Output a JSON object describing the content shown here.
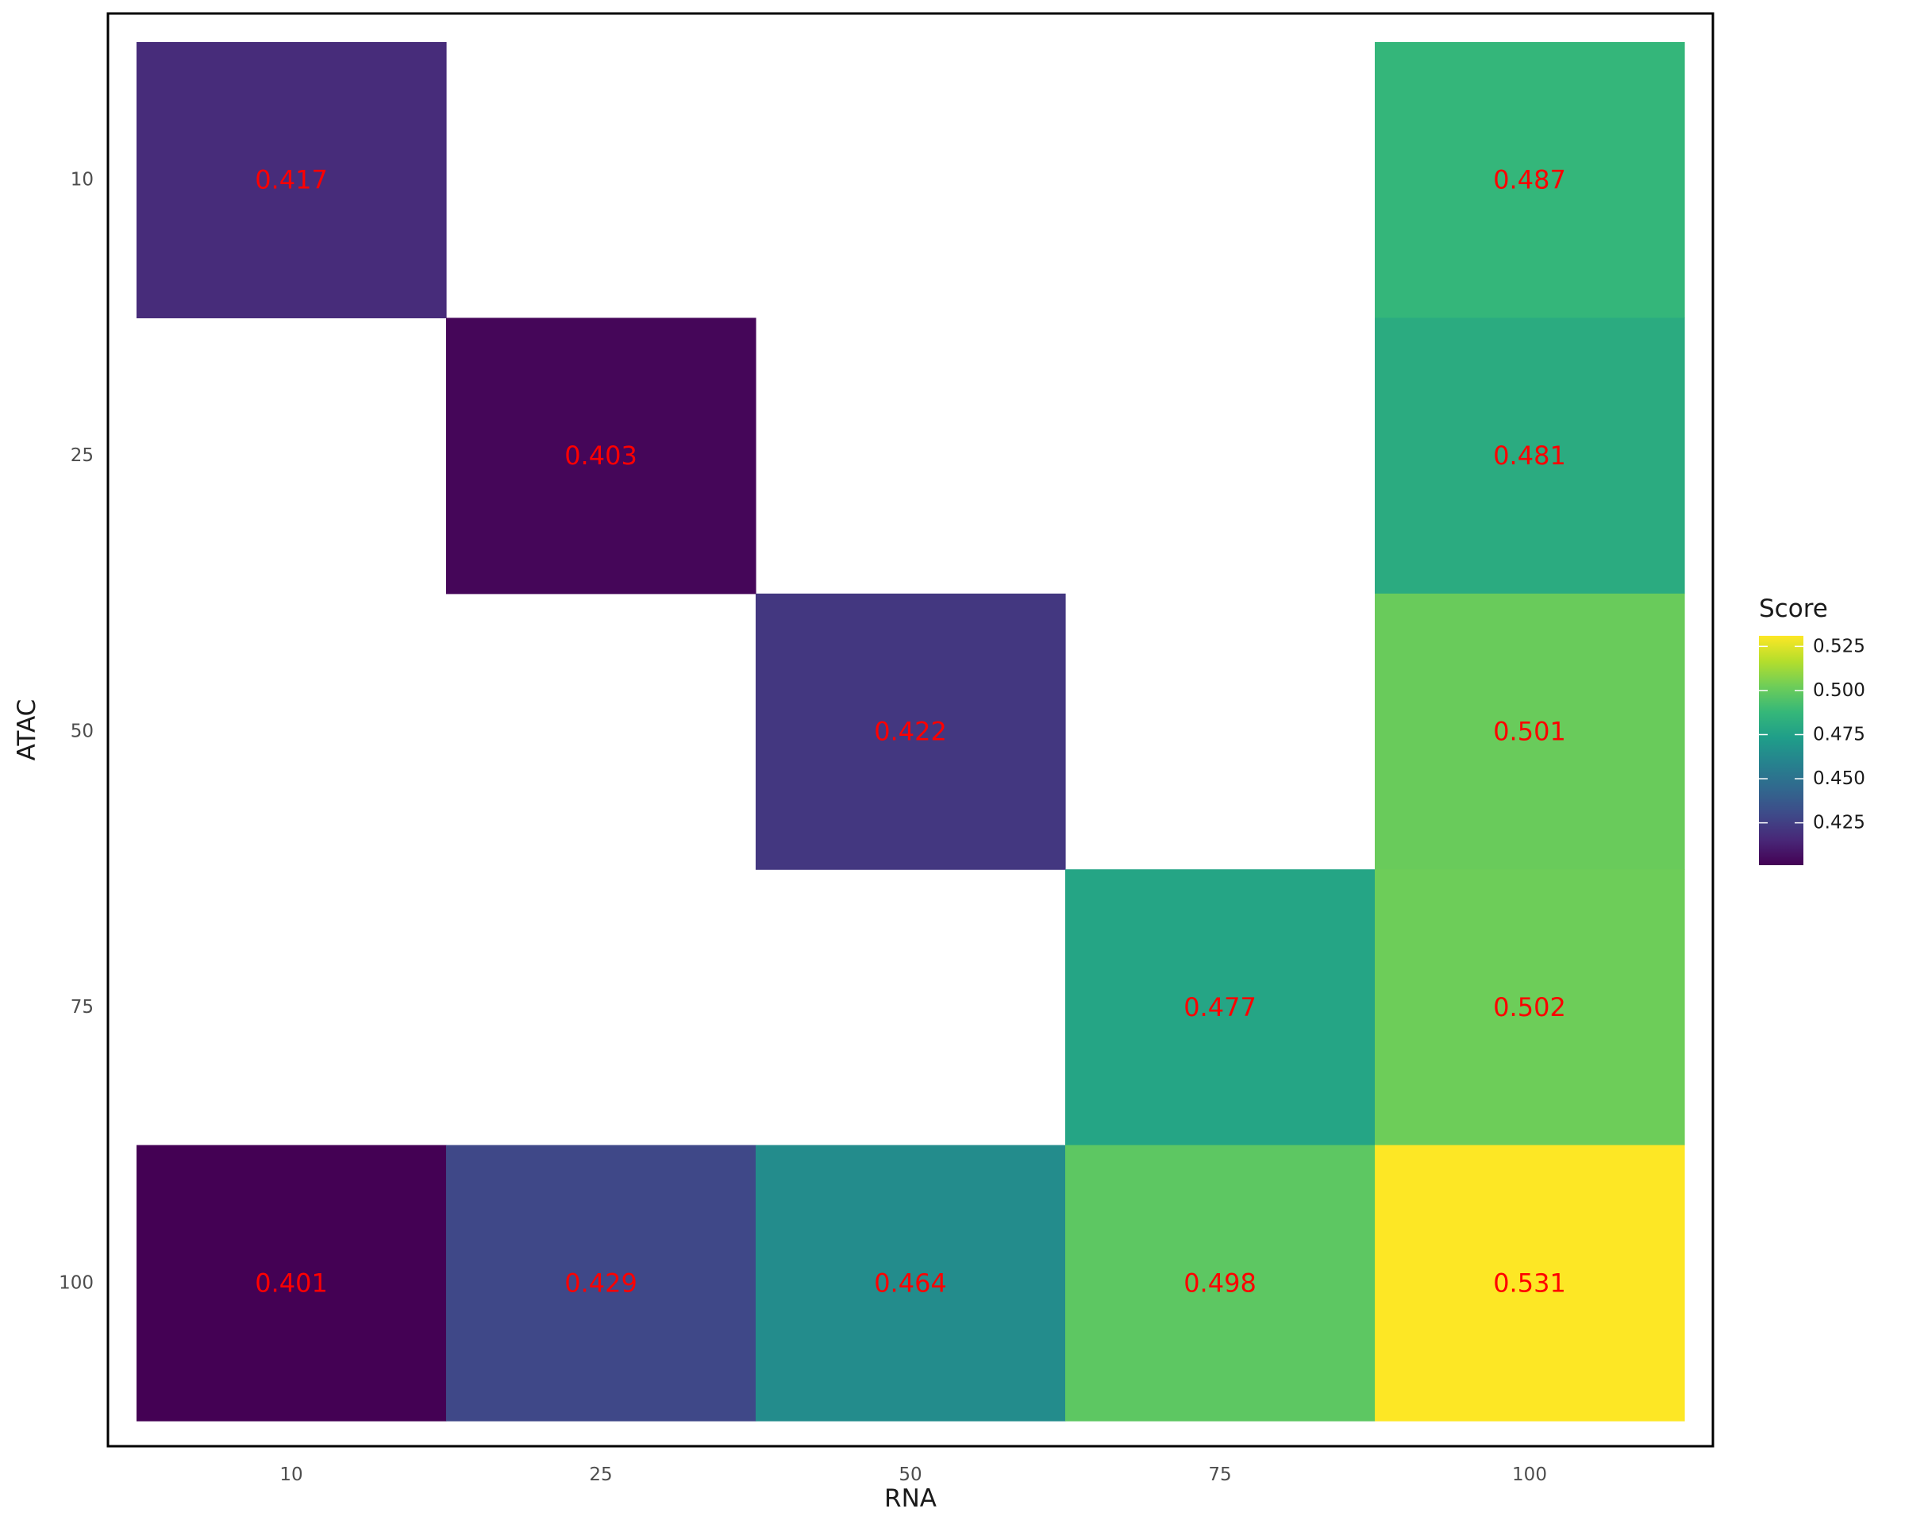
{
  "chart_data": {
    "type": "heatmap",
    "x_categories": [
      "10",
      "25",
      "50",
      "75",
      "100"
    ],
    "y_categories": [
      "10",
      "25",
      "50",
      "75",
      "100"
    ],
    "xlabel": "RNA",
    "ylabel": "ATAC",
    "cells": [
      {
        "x": "10",
        "y": "10",
        "value": 0.417,
        "label": "0.417"
      },
      {
        "x": "100",
        "y": "10",
        "value": 0.487,
        "label": "0.487"
      },
      {
        "x": "25",
        "y": "25",
        "value": 0.403,
        "label": "0.403"
      },
      {
        "x": "100",
        "y": "25",
        "value": 0.481,
        "label": "0.481"
      },
      {
        "x": "50",
        "y": "50",
        "value": 0.422,
        "label": "0.422"
      },
      {
        "x": "100",
        "y": "50",
        "value": 0.501,
        "label": "0.501"
      },
      {
        "x": "75",
        "y": "75",
        "value": 0.477,
        "label": "0.477"
      },
      {
        "x": "100",
        "y": "75",
        "value": 0.502,
        "label": "0.502"
      },
      {
        "x": "10",
        "y": "100",
        "value": 0.401,
        "label": "0.401"
      },
      {
        "x": "25",
        "y": "100",
        "value": 0.429,
        "label": "0.429"
      },
      {
        "x": "50",
        "y": "100",
        "value": 0.464,
        "label": "0.464"
      },
      {
        "x": "75",
        "y": "100",
        "value": 0.498,
        "label": "0.498"
      },
      {
        "x": "100",
        "y": "100",
        "value": 0.531,
        "label": "0.531"
      }
    ],
    "color_scale": {
      "name": "viridis",
      "min": 0.401,
      "max": 0.531,
      "stops": [
        "#440154",
        "#482878",
        "#3E4A89",
        "#31688E",
        "#26828E",
        "#1F9E89",
        "#35B779",
        "#6DCD59",
        "#B4DE2C",
        "#FDE725"
      ]
    },
    "legend": {
      "title": "Score",
      "ticks": [
        "0.425",
        "0.450",
        "0.475",
        "0.500",
        "0.525"
      ],
      "position": "right"
    },
    "label_color": "#ff0000",
    "grid": false,
    "panel_border": true
  }
}
